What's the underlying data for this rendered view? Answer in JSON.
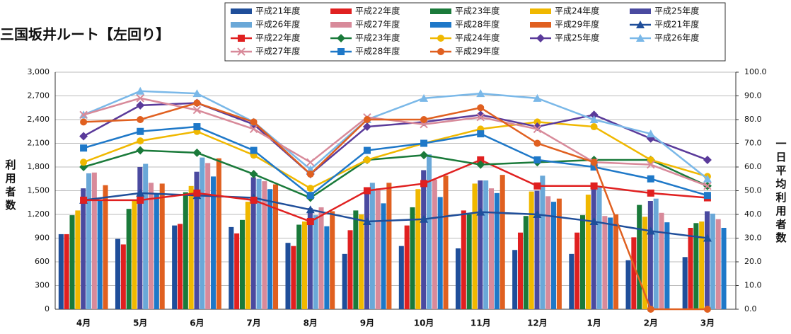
{
  "chart_data": {
    "type": "bar",
    "title": "三国坂井ルート【左回り】",
    "y_label": "利用者数",
    "y2_label": "一日平均利用者数",
    "categories": [
      "4月",
      "5月",
      "6月",
      "7月",
      "8月",
      "9月",
      "10月",
      "11月",
      "12月",
      "1月",
      "2月",
      "3月"
    ],
    "ylim": [
      0,
      3000
    ],
    "yticks": [
      0,
      300,
      600,
      900,
      {
        "value": 1200,
        "label": "1,200"
      },
      {
        "value": 1500,
        "label": "1,500"
      },
      {
        "value": 1800,
        "label": "1,800"
      },
      {
        "value": 2100,
        "label": "2,100"
      },
      {
        "value": 2400,
        "label": "2,400"
      },
      {
        "value": 2700,
        "label": "2,700"
      },
      {
        "value": 3000,
        "label": "3,000"
      }
    ],
    "y2lim": [
      0,
      100
    ],
    "y2ticks": [
      {
        "value": 0,
        "label": "0.0"
      },
      {
        "value": 10,
        "label": "10.0"
      },
      {
        "value": 20,
        "label": "20.0"
      },
      {
        "value": 30,
        "label": "30.0"
      },
      {
        "value": 40,
        "label": "40.0"
      },
      {
        "value": 50,
        "label": "50.0"
      },
      {
        "value": 60,
        "label": "60.0"
      },
      {
        "value": 70,
        "label": "70.0"
      },
      {
        "value": 80,
        "label": "80.0"
      },
      {
        "value": 90,
        "label": "90.0"
      },
      {
        "value": 100,
        "label": "100.0"
      }
    ],
    "grid": true,
    "series": [
      {
        "name": "平成21年度",
        "type": "bar",
        "color": "#1f4e9a",
        "values": [
          950,
          890,
          1060,
          1040,
          840,
          700,
          800,
          770,
          750,
          700,
          620,
          660
        ]
      },
      {
        "name": "平成22年度",
        "type": "bar",
        "color": "#e02020",
        "values": [
          950,
          820,
          1080,
          960,
          800,
          1000,
          1060,
          1250,
          970,
          970,
          910,
          1030
        ]
      },
      {
        "name": "平成23年度",
        "type": "bar",
        "color": "#1a7a3a",
        "values": [
          1190,
          1270,
          1480,
          1130,
          1070,
          1250,
          1290,
          1200,
          1180,
          1190,
          1320,
          1090
        ]
      },
      {
        "name": "平成24年度",
        "type": "bar",
        "color": "#f0b800",
        "values": [
          1250,
          1380,
          1560,
          1360,
          1110,
          1200,
          1520,
          1590,
          1490,
          1450,
          1170,
          1110
        ]
      },
      {
        "name": "平成25年度",
        "type": "bar",
        "color": "#4a4aa0",
        "values": [
          1530,
          1800,
          1740,
          1670,
          1280,
          1520,
          1760,
          1630,
          1500,
          1550,
          1370,
          1240
        ]
      },
      {
        "name": "平成26年度",
        "type": "bar",
        "color": "#6aa8d8",
        "values": [
          1720,
          1840,
          1920,
          1650,
          1190,
          1600,
          1960,
          1630,
          1690,
          1540,
          1400,
          1210
        ]
      },
      {
        "name": "平成27年度",
        "type": "bar",
        "color": "#d88a9a",
        "values": [
          1730,
          1600,
          1850,
          1620,
          1290,
          1530,
          1640,
          1530,
          1430,
          1180,
          1220,
          1140
        ]
      },
      {
        "name": "平成28年度",
        "type": "bar",
        "color": "#1e78c8",
        "values": [
          1390,
          1460,
          1680,
          1520,
          1050,
          1340,
          1420,
          1470,
          1360,
          1160,
          1100,
          1030
        ]
      },
      {
        "name": "平成29年度",
        "type": "bar",
        "color": "#e06020",
        "values": [
          1570,
          1590,
          1910,
          1580,
          1240,
          1600,
          1690,
          1700,
          1400,
          1200,
          0,
          0
        ]
      },
      {
        "name": "平成21年度",
        "type": "line",
        "axis": "y2",
        "marker": "triangle",
        "color": "#1f4e9a",
        "values": [
          46,
          49,
          48,
          47,
          42,
          37,
          38,
          41,
          40,
          37,
          33,
          30
        ]
      },
      {
        "name": "平成22年度",
        "type": "line",
        "axis": "y2",
        "marker": "square",
        "color": "#e02020",
        "values": [
          46,
          46,
          49,
          46,
          37,
          50,
          53,
          63,
          52,
          52,
          49,
          47
        ]
      },
      {
        "name": "平成23年度",
        "type": "line",
        "axis": "y2",
        "marker": "diamond",
        "color": "#1a7a3a",
        "values": [
          60,
          67,
          66,
          57,
          47,
          63,
          65,
          61,
          62,
          63,
          63,
          52
        ]
      },
      {
        "name": "平成24年度",
        "type": "line",
        "axis": "y2",
        "marker": "circle",
        "color": "#f0b800",
        "values": [
          62,
          71,
          75,
          65,
          51,
          63,
          70,
          76,
          79,
          77,
          63,
          56
        ]
      },
      {
        "name": "平成25年度",
        "type": "line",
        "axis": "y2",
        "marker": "diamond",
        "color": "#5a3a9a",
        "values": [
          73,
          86,
          87,
          78,
          57,
          77,
          79,
          82,
          77,
          82,
          72,
          63
        ]
      },
      {
        "name": "平成26年度",
        "type": "line",
        "axis": "y2",
        "marker": "triangle",
        "color": "#7ab8e8",
        "values": [
          82,
          92,
          91,
          79,
          59,
          80,
          89,
          91,
          89,
          80,
          74,
          55
        ]
      },
      {
        "name": "平成27年度",
        "type": "line",
        "axis": "y2",
        "marker": "x",
        "color": "#d88a9a",
        "values": [
          82,
          89,
          84,
          76,
          62,
          81,
          78,
          81,
          76,
          62,
          61,
          52
        ]
      },
      {
        "name": "平成28年度",
        "type": "line",
        "axis": "y2",
        "marker": "square",
        "color": "#1e78c8",
        "values": [
          68,
          75,
          77,
          67,
          48,
          67,
          70,
          74,
          63,
          60,
          55,
          48
        ]
      },
      {
        "name": "平成29年度",
        "type": "line",
        "axis": "y2",
        "marker": "circle",
        "color": "#e06020",
        "values": [
          79,
          80,
          87,
          79,
          57,
          80,
          80,
          85,
          70,
          62,
          0,
          0
        ]
      }
    ]
  }
}
